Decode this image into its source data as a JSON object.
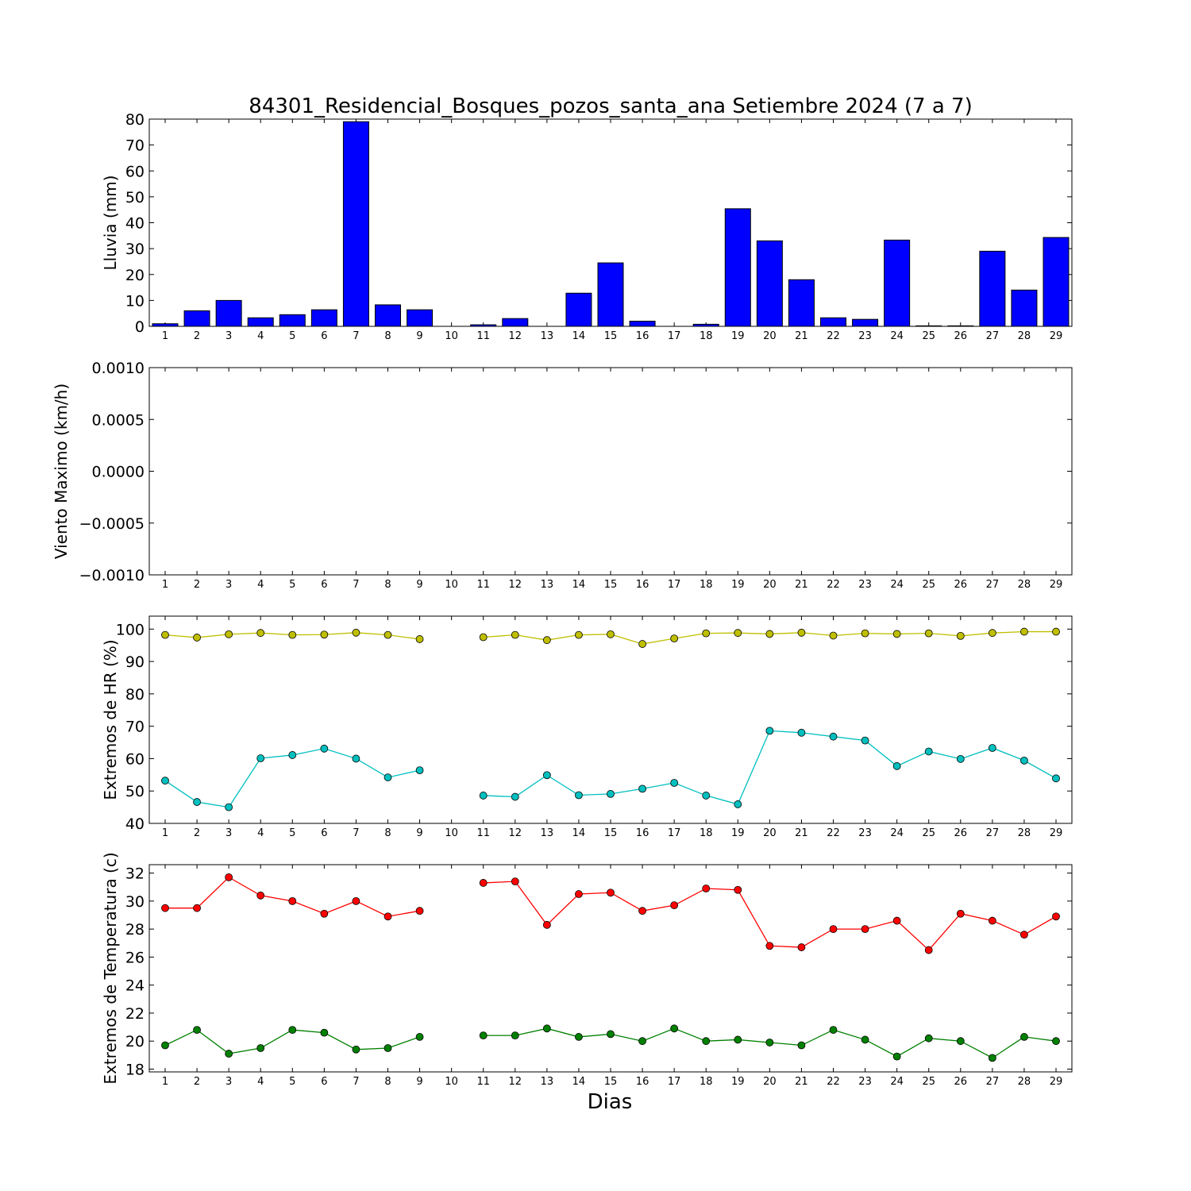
{
  "title": "84301_Residencial_Bosques_pozos_santa_ana Setiembre 2024  (7 a 7)",
  "xlabel": "Dias",
  "colors": {
    "bar": "#0000ff",
    "hr_max": "#bfbf00",
    "hr_min": "#00bfbf",
    "temp_max": "#ff0000",
    "temp_min": "#008000"
  },
  "chart_data": [
    {
      "type": "bar",
      "ylabel": "Lluvia (mm)",
      "ylim": [
        0,
        80
      ],
      "yticks": [
        "0",
        "10",
        "20",
        "30",
        "40",
        "50",
        "60",
        "70",
        "80"
      ],
      "categories": [
        "1",
        "2",
        "3",
        "4",
        "5",
        "6",
        "7",
        "8",
        "9",
        "10",
        "11",
        "12",
        "13",
        "14",
        "15",
        "16",
        "17",
        "18",
        "19",
        "20",
        "21",
        "22",
        "23",
        "24",
        "25",
        "26",
        "27",
        "28",
        "29"
      ],
      "values": [
        1.0,
        6.0,
        10.0,
        3.3,
        4.5,
        6.4,
        79.0,
        8.3,
        6.4,
        0.0,
        0.6,
        3.0,
        0.0,
        12.8,
        24.5,
        2.0,
        0.0,
        0.8,
        45.4,
        33.0,
        18.0,
        3.3,
        2.7,
        33.3,
        0.2,
        0.2,
        29.0,
        14.0,
        34.3
      ]
    },
    {
      "type": "line",
      "ylabel": "Viento Maximo (km/h)",
      "ylim": [
        -0.001,
        0.001
      ],
      "yticks": [
        "0.0010",
        "0.0005",
        "0.0000",
        "−0.0005",
        "−0.0010"
      ],
      "categories": [
        "1",
        "2",
        "3",
        "4",
        "5",
        "6",
        "7",
        "8",
        "9",
        "10",
        "11",
        "12",
        "13",
        "14",
        "15",
        "16",
        "17",
        "18",
        "19",
        "20",
        "21",
        "22",
        "23",
        "24",
        "25",
        "26",
        "27",
        "28",
        "29"
      ],
      "series": []
    },
    {
      "type": "line",
      "ylabel": "Extremos de HR (%)",
      "ylim": [
        40,
        104
      ],
      "yticks": [
        "100",
        "90",
        "80",
        "70",
        "60",
        "50",
        "40"
      ],
      "categories": [
        "1",
        "2",
        "3",
        "4",
        "5",
        "6",
        "7",
        "8",
        "9",
        "10",
        "11",
        "12",
        "13",
        "14",
        "15",
        "16",
        "17",
        "18",
        "19",
        "20",
        "21",
        "22",
        "23",
        "24",
        "25",
        "26",
        "27",
        "28",
        "29"
      ],
      "series": [
        {
          "values": [
            98.2,
            97.4,
            98.4,
            98.8,
            98.2,
            98.3,
            98.9,
            98.2,
            96.9,
            null,
            97.5,
            98.2,
            96.6,
            98.2,
            98.4,
            95.4,
            97.1,
            98.7,
            98.8,
            98.5,
            98.9,
            98.0,
            98.7,
            98.5,
            98.7,
            97.9,
            98.8,
            99.2,
            99.2
          ]
        },
        {
          "values": [
            53.2,
            46.6,
            45.0,
            60.1,
            61.1,
            63.1,
            60.0,
            54.2,
            56.4,
            null,
            48.6,
            48.2,
            54.9,
            48.7,
            49.1,
            50.7,
            52.5,
            48.6,
            45.9,
            68.6,
            68.0,
            66.8,
            65.6,
            57.7,
            62.2,
            59.9,
            63.3,
            59.4,
            53.9
          ]
        }
      ]
    },
    {
      "type": "line",
      "ylabel": "Extremos de Temperatura (c)",
      "ylim": [
        17.8,
        32.6
      ],
      "yticks": [
        "32",
        "30",
        "28",
        "26",
        "24",
        "22",
        "20",
        "18"
      ],
      "categories": [
        "1",
        "2",
        "3",
        "4",
        "5",
        "6",
        "7",
        "8",
        "9",
        "10",
        "11",
        "12",
        "13",
        "14",
        "15",
        "16",
        "17",
        "18",
        "19",
        "20",
        "21",
        "22",
        "23",
        "24",
        "25",
        "26",
        "27",
        "28",
        "29"
      ],
      "series": [
        {
          "values": [
            29.5,
            29.5,
            31.7,
            30.4,
            30.0,
            29.1,
            30.0,
            28.9,
            29.3,
            null,
            31.3,
            31.4,
            28.3,
            30.5,
            30.6,
            29.3,
            29.7,
            30.9,
            30.8,
            26.8,
            26.7,
            28.0,
            28.0,
            28.6,
            26.5,
            29.1,
            28.6,
            27.6,
            28.9
          ]
        },
        {
          "values": [
            19.7,
            20.8,
            19.1,
            19.5,
            20.8,
            20.6,
            19.4,
            19.5,
            20.3,
            null,
            20.4,
            20.4,
            20.9,
            20.3,
            20.5,
            20.0,
            20.9,
            20.0,
            20.1,
            19.9,
            19.7,
            20.8,
            20.1,
            18.9,
            20.2,
            20.0,
            18.8,
            20.3,
            20.0
          ]
        }
      ]
    }
  ]
}
